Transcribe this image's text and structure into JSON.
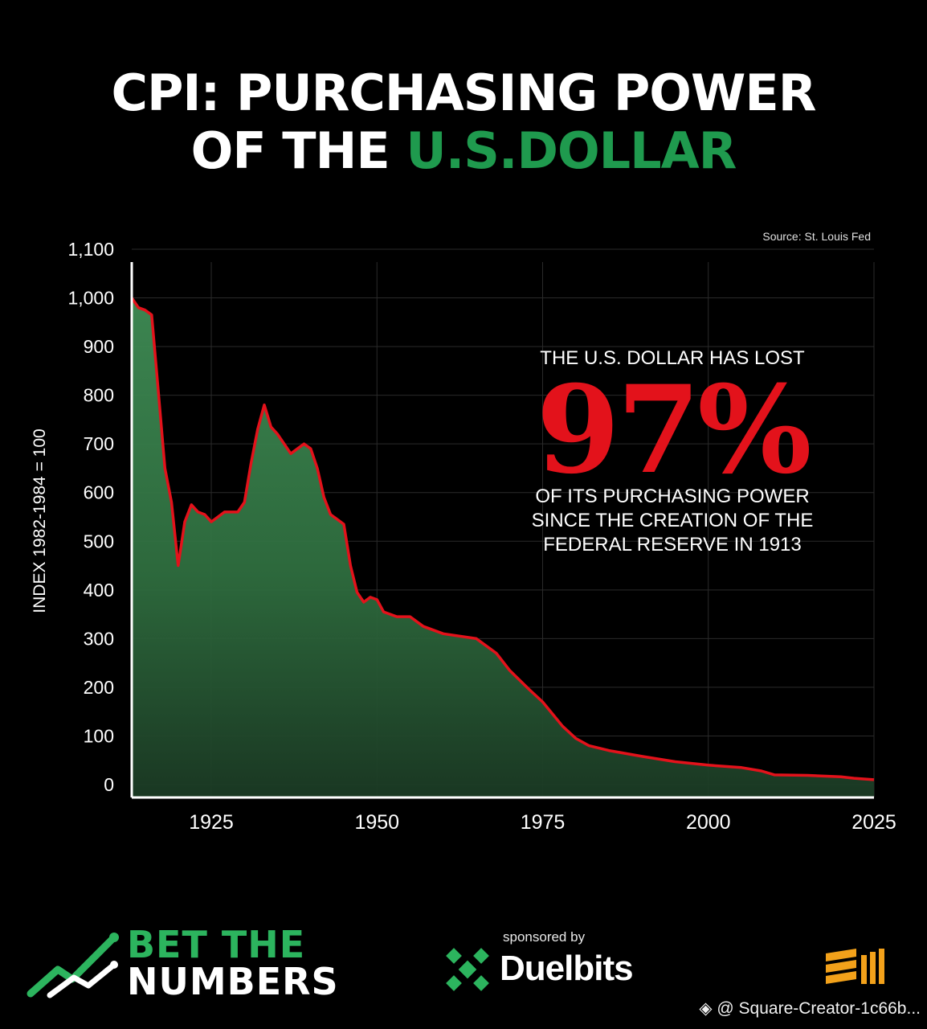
{
  "title": {
    "line1": "CPI: PURCHASING POWER",
    "line2_white": "OF THE ",
    "line2_green": "U.S.DOLLAR"
  },
  "source": "Source: St. Louis Fed",
  "callout": {
    "top": "THE U.S. DOLLAR HAS LOST",
    "big": "97%",
    "bottom_lines": [
      "OF ITS PURCHASING POWER",
      "SINCE THE CREATION OF THE",
      "FEDERAL RESERVE IN 1913"
    ]
  },
  "chart_data": {
    "type": "area",
    "ylabel": "INDEX 1982-1984 = 100",
    "xlabel": "",
    "xlim": [
      1913,
      2025
    ],
    "ylim": [
      0,
      1100
    ],
    "y_ticks": [
      0,
      100,
      200,
      300,
      400,
      500,
      600,
      700,
      800,
      900,
      1000,
      1100
    ],
    "y_tick_labels": [
      "0",
      "100",
      "200",
      "300",
      "400",
      "500",
      "600",
      "700",
      "800",
      "900",
      "1,000",
      "1,100"
    ],
    "x_ticks": [
      1925,
      1950,
      1975,
      2000,
      2025
    ],
    "x_tick_labels": [
      "1925",
      "1950",
      "1975",
      "2000",
      "2025"
    ],
    "grid": true,
    "line_color": "#e3121b",
    "fill_color": "#2f6e3f",
    "x": [
      1913,
      1914,
      1915,
      1916,
      1917,
      1918,
      1919,
      1920,
      1921,
      1922,
      1923,
      1924,
      1925,
      1926,
      1927,
      1928,
      1929,
      1930,
      1931,
      1932,
      1933,
      1934,
      1935,
      1936,
      1937,
      1938,
      1939,
      1940,
      1941,
      1942,
      1943,
      1944,
      1945,
      1946,
      1947,
      1948,
      1949,
      1950,
      1951,
      1952,
      1953,
      1955,
      1957,
      1960,
      1965,
      1968,
      1970,
      1973,
      1975,
      1978,
      1980,
      1982,
      1985,
      1990,
      1995,
      2000,
      2005,
      2008,
      2010,
      2015,
      2020,
      2022,
      2025
    ],
    "values": [
      1000,
      980,
      975,
      965,
      810,
      650,
      580,
      450,
      540,
      575,
      560,
      555,
      540,
      550,
      560,
      560,
      560,
      580,
      660,
      730,
      780,
      735,
      720,
      700,
      680,
      690,
      700,
      690,
      650,
      590,
      555,
      545,
      535,
      450,
      395,
      375,
      385,
      380,
      355,
      350,
      345,
      345,
      325,
      310,
      300,
      270,
      235,
      195,
      170,
      120,
      95,
      80,
      70,
      58,
      47,
      40,
      35,
      28,
      20,
      19,
      16,
      13,
      10
    ]
  },
  "footer": {
    "brand_line1": "BET THE",
    "brand_line2": "NUMBERS",
    "sponsor_label": "sponsored by",
    "sponsor_name": "Duelbits",
    "watermark": "◈ @ Square-Creator-1c66b..."
  },
  "colors": {
    "background": "#000000",
    "accent_green": "#1f9a4e",
    "accent_red": "#e3121b"
  }
}
